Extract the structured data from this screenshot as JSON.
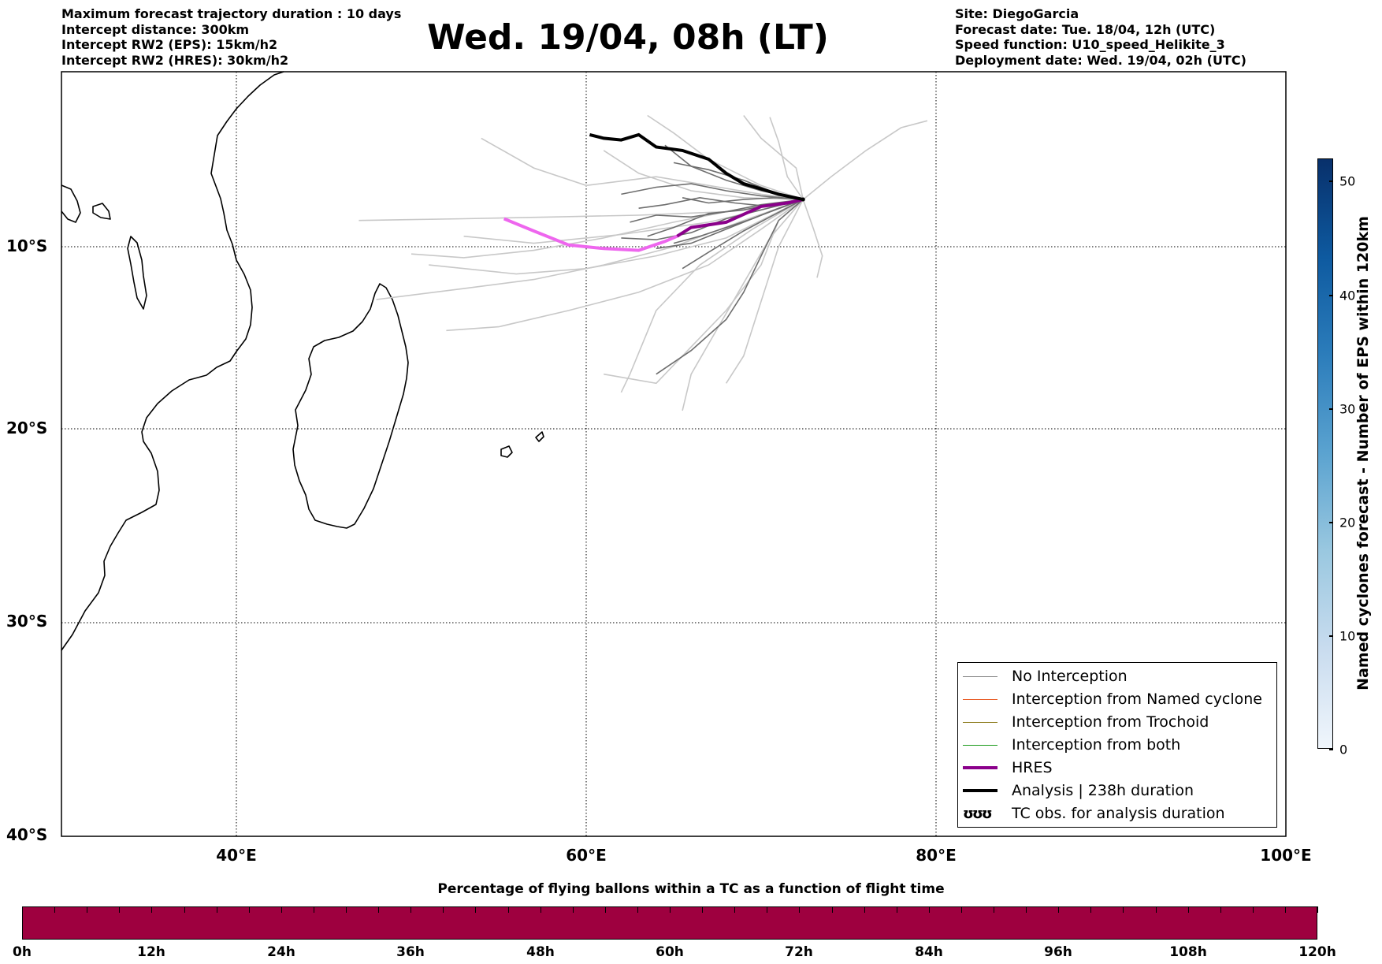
{
  "header": {
    "left_lines": [
      "Maximum forecast trajectory duration : 10 days",
      "Intercept distance: 300km",
      "Intercept RW2 (EPS):  15km/h2",
      "Intercept RW2 (HRES): 30km/h2"
    ],
    "title": "Wed. 19/04, 08h (LT)",
    "right_lines": [
      "Site: DiegoGarcia",
      "Forecast date: Tue. 18/04, 12h (UTC)",
      "Speed function: U10_speed_Helikite_3",
      "Deployment date: Wed. 19/04, 02h (UTC)"
    ]
  },
  "map": {
    "lat_labels": [
      "10°S",
      "20°S",
      "30°S",
      "40°S"
    ],
    "lon_labels": [
      "40°E",
      "60°E",
      "80°E",
      "100°E"
    ],
    "lon_range": [
      30,
      100
    ],
    "lat_range": [
      -40,
      -0.1
    ],
    "colors": {
      "eps_light": "#c8c8c8",
      "eps_dark": "#6e6e6e",
      "hres": "#8b008b",
      "hres_early": "#ee66ee",
      "analysis": "#000000"
    }
  },
  "legend": {
    "items": [
      {
        "label": "No Interception",
        "color": "#808080",
        "style": "thin"
      },
      {
        "label": "Interception from Named cyclone",
        "color": "#e8561f",
        "style": "thin"
      },
      {
        "label": "Interception from Trochoid",
        "color": "#8a7a1a",
        "style": "thin"
      },
      {
        "label": "Interception from both",
        "color": "#1a9a1a",
        "style": "thin"
      },
      {
        "label": "HRES",
        "color": "#8b008b",
        "style": "thick"
      },
      {
        "label": "Analysis | 238h duration",
        "color": "#000000",
        "style": "thick"
      },
      {
        "label": "TC obs. for analysis duration",
        "color": "#000000",
        "style": "tc",
        "symbol": "ʊʊʊ"
      }
    ]
  },
  "colorbar_right": {
    "label": "Named cyclones forecast - Number of EPS within 120km",
    "ticks": [
      "0",
      "10",
      "20",
      "30",
      "40",
      "50"
    ],
    "range": [
      0,
      52
    ]
  },
  "colorbar_bottom": {
    "title": "Percentage of flying ballons within a TC as a function of flight time",
    "ticks": [
      "0h",
      "12h",
      "24h",
      "36h",
      "48h",
      "60h",
      "72h",
      "84h",
      "96h",
      "108h",
      "120h"
    ],
    "fill_color": "#9e003f"
  }
}
